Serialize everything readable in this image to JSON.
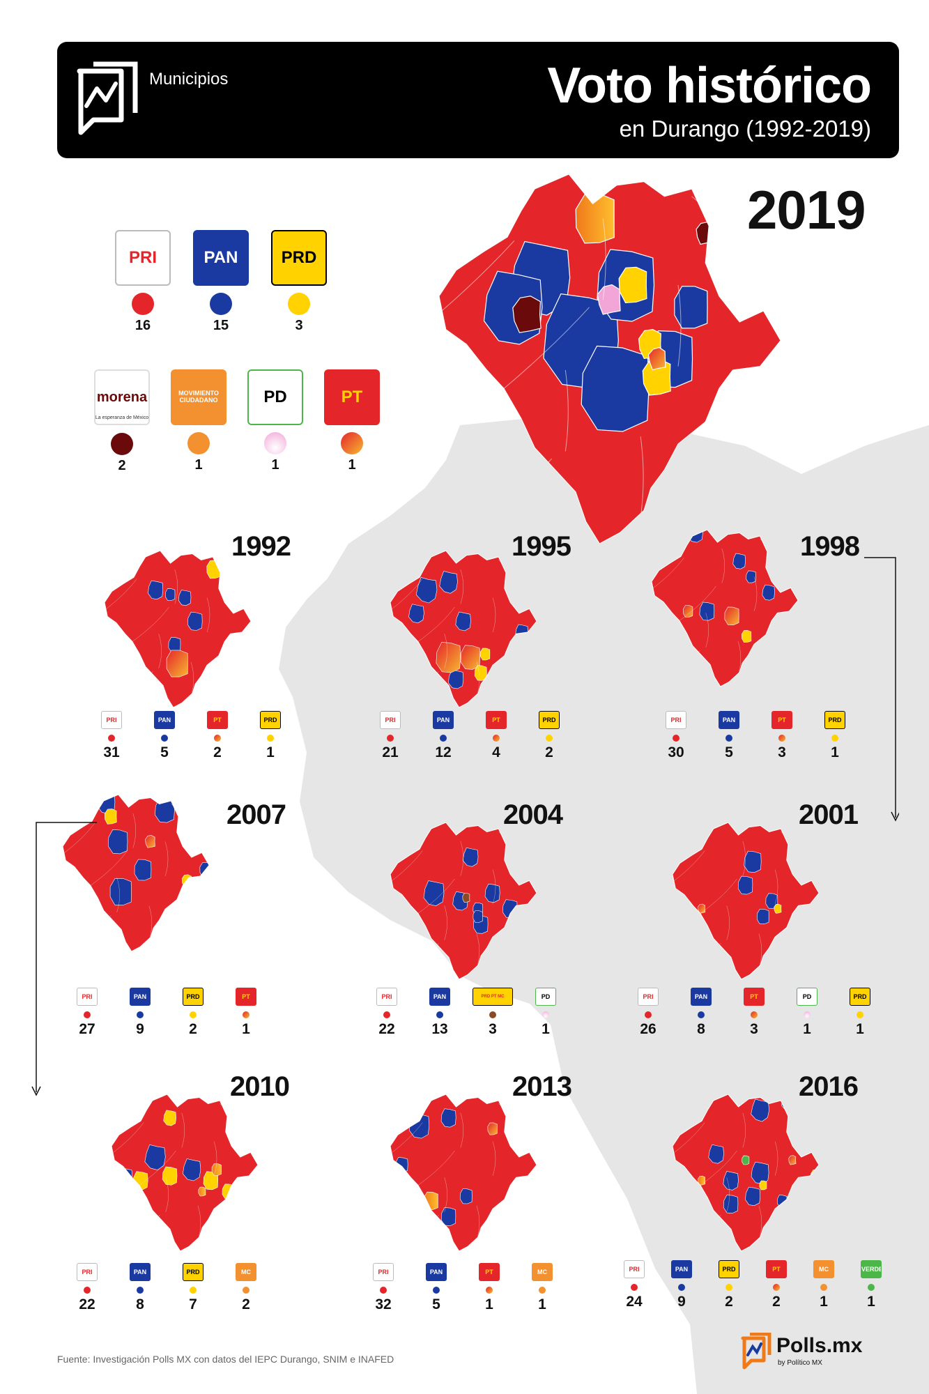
{
  "header": {
    "label": "Municipios",
    "title": "Voto histórico",
    "subtitle": "en Durango (1992-2019)"
  },
  "colors": {
    "PRI": "#e4262a",
    "PAN": "#1b3aa1",
    "PRD": "#ffd200",
    "MORENA": "#6a0a0a",
    "MC": "#f39131",
    "PD": "#f2a6d8",
    "PT": "#f07a1a",
    "PT_DOT_GRADIENT": [
      "#e4262a",
      "#f7b731"
    ],
    "PRD_PT_MC": "#8a4a25",
    "VERDE": "#4cb649",
    "land": "#e6e6e6"
  },
  "main_map": {
    "year": "2019",
    "legend": [
      {
        "party": "PRI",
        "label": "PRI",
        "count": "16"
      },
      {
        "party": "PAN",
        "label": "PAN",
        "count": "15"
      },
      {
        "party": "PRD",
        "label": "PRD",
        "count": "3"
      },
      {
        "party": "MORENA",
        "label": "morena",
        "sublabel": "La esperanza de México",
        "count": "2"
      },
      {
        "party": "MC",
        "label": "MOVIMIENTO CIUDADANO",
        "count": "1"
      },
      {
        "party": "PD",
        "label": "PD",
        "count": "1"
      },
      {
        "party": "PT",
        "label": "PT",
        "count": "1"
      }
    ]
  },
  "small_maps": [
    {
      "year": "1992",
      "legend": [
        {
          "party": "PRI",
          "label": "PRI",
          "count": "31"
        },
        {
          "party": "PAN",
          "label": "PAN",
          "count": "5"
        },
        {
          "party": "PT",
          "label": "PT",
          "count": "2"
        },
        {
          "party": "PRD",
          "label": "PRD",
          "count": "1"
        }
      ]
    },
    {
      "year": "1995",
      "legend": [
        {
          "party": "PRI",
          "label": "PRI",
          "count": "21"
        },
        {
          "party": "PAN",
          "label": "PAN",
          "count": "12"
        },
        {
          "party": "PT",
          "label": "PT",
          "count": "4"
        },
        {
          "party": "PRD",
          "label": "PRD",
          "count": "2"
        }
      ]
    },
    {
      "year": "1998",
      "legend": [
        {
          "party": "PRI",
          "label": "PRI",
          "count": "30"
        },
        {
          "party": "PAN",
          "label": "PAN",
          "count": "5"
        },
        {
          "party": "PT",
          "label": "PT",
          "count": "3"
        },
        {
          "party": "PRD",
          "label": "PRD",
          "count": "1"
        }
      ]
    },
    {
      "year": "2007",
      "legend": [
        {
          "party": "PRI",
          "label": "PRI",
          "count": "27"
        },
        {
          "party": "PAN",
          "label": "PAN",
          "count": "9"
        },
        {
          "party": "PRD",
          "label": "PRD",
          "count": "2"
        },
        {
          "party": "PT",
          "label": "PT",
          "count": "1"
        }
      ]
    },
    {
      "year": "2004",
      "legend": [
        {
          "party": "PRI",
          "label": "PRI",
          "count": "22"
        },
        {
          "party": "PAN",
          "label": "PAN",
          "count": "13"
        },
        {
          "party": "PRD_PT_MC",
          "label": "PRD PT MC",
          "count": "3"
        },
        {
          "party": "PD",
          "label": "PD",
          "count": "1"
        }
      ]
    },
    {
      "year": "2001",
      "legend": [
        {
          "party": "PRI",
          "label": "PRI",
          "count": "26"
        },
        {
          "party": "PAN",
          "label": "PAN",
          "count": "8"
        },
        {
          "party": "PT",
          "label": "PT",
          "count": "3"
        },
        {
          "party": "PD",
          "label": "PD",
          "count": "1"
        },
        {
          "party": "PRD",
          "label": "PRD",
          "count": "1"
        }
      ]
    },
    {
      "year": "2010",
      "legend": [
        {
          "party": "PRI",
          "label": "PRI",
          "count": "22"
        },
        {
          "party": "PAN",
          "label": "PAN",
          "count": "8"
        },
        {
          "party": "PRD",
          "label": "PRD",
          "count": "7"
        },
        {
          "party": "MC",
          "label": "MC",
          "count": "2"
        }
      ]
    },
    {
      "year": "2013",
      "legend": [
        {
          "party": "PRI",
          "label": "PRI",
          "count": "32"
        },
        {
          "party": "PAN",
          "label": "PAN",
          "count": "5"
        },
        {
          "party": "PT",
          "label": "PT",
          "count": "1"
        },
        {
          "party": "MC",
          "label": "MC",
          "count": "1"
        }
      ]
    },
    {
      "year": "2016",
      "legend": [
        {
          "party": "PRI",
          "label": "PRI",
          "count": "24"
        },
        {
          "party": "PAN",
          "label": "PAN",
          "count": "9"
        },
        {
          "party": "PRD",
          "label": "PRD",
          "count": "2"
        },
        {
          "party": "PT",
          "label": "PT",
          "count": "2"
        },
        {
          "party": "MC",
          "label": "MC",
          "count": "1"
        },
        {
          "party": "VERDE",
          "label": "VERDE",
          "count": "1"
        }
      ]
    }
  ],
  "footer": {
    "source": "Fuente: Investigación Polls MX con datos del IEPC Durango, SNIM e INAFED",
    "brand": "Polls.mx",
    "brand_sub": "by Político MX"
  }
}
